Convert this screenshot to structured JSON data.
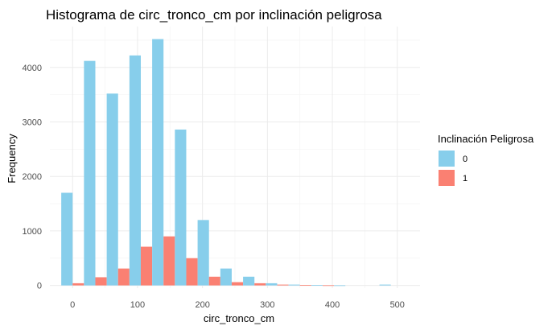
{
  "chart_data": {
    "type": "bar",
    "title": "Histograma de circ_tronco_cm por inclinación peligrosa",
    "xlabel": "circ_tronco_cm",
    "ylabel": "Frequency",
    "x_ticks": [
      0,
      100,
      200,
      300,
      400,
      500
    ],
    "y_ticks": [
      0,
      1000,
      2000,
      3000,
      4000
    ],
    "xlim": [
      -35,
      535
    ],
    "ylim": [
      -50,
      4750
    ],
    "bin_width": 35,
    "grid": true,
    "legend": {
      "title": "Inclinación Peligrosa",
      "position": "right"
    },
    "bin_centers": [
      0,
      35,
      70,
      105,
      140,
      175,
      210,
      245,
      280,
      315,
      350,
      385,
      420,
      455,
      490
    ],
    "series": [
      {
        "name": "0",
        "color": "#87ceeb",
        "values": [
          1700,
          4120,
          3520,
          4220,
          4520,
          2860,
          1200,
          310,
          160,
          40,
          15,
          8,
          2,
          0,
          15
        ]
      },
      {
        "name": "1",
        "color": "#fa8072",
        "values": [
          40,
          150,
          310,
          710,
          900,
          500,
          160,
          60,
          40,
          15,
          8,
          3,
          0,
          0,
          0
        ]
      }
    ]
  }
}
